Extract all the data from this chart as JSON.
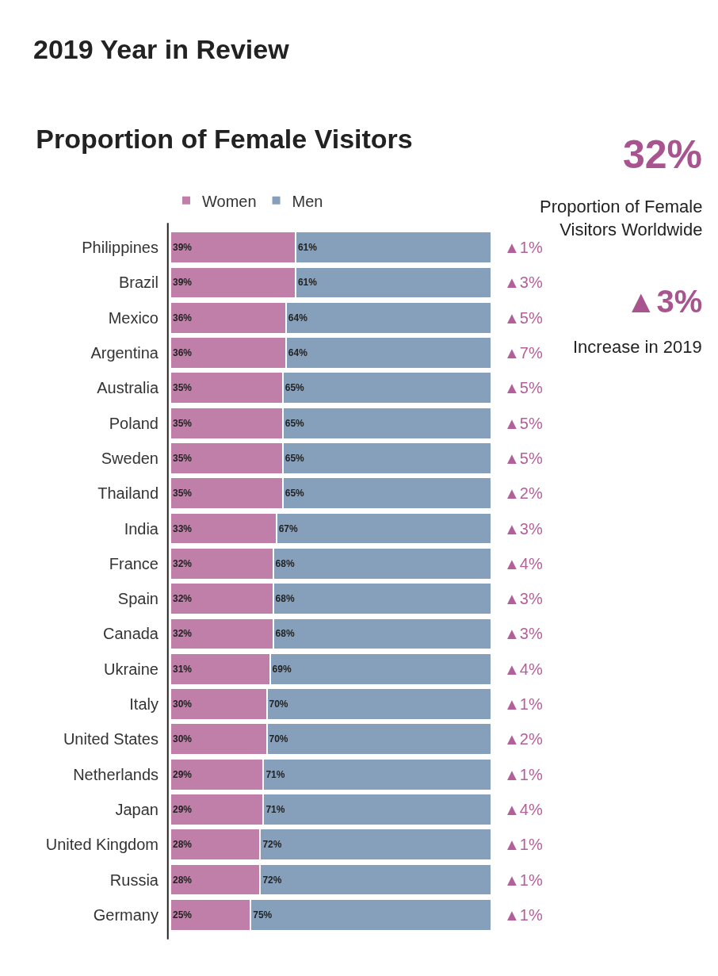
{
  "chart_data": {
    "type": "bar",
    "title": "Proportion of Female Visitors",
    "categories": [
      "Philippines",
      "Brazil",
      "Mexico",
      "Argentina",
      "Australia",
      "Poland",
      "Sweden",
      "Thailand",
      "India",
      "France",
      "Spain",
      "Canada",
      "Ukraine",
      "Italy",
      "United States",
      "Netherlands",
      "Japan",
      "United Kingdom",
      "Russia",
      "Germany"
    ],
    "series": [
      {
        "name": "Women",
        "color": "#c07fa8",
        "values": [
          39,
          39,
          36,
          36,
          35,
          35,
          35,
          35,
          33,
          32,
          32,
          32,
          31,
          30,
          30,
          29,
          29,
          28,
          28,
          25
        ],
        "value_labels": [
          "39%",
          "39%",
          "36%",
          "36%",
          "35%",
          "35%",
          "35%",
          "35%",
          "33%",
          "32%",
          "32%",
          "32%",
          "31%",
          "30%",
          "30%",
          "29%",
          "29%",
          "28%",
          "28%",
          "25%"
        ]
      },
      {
        "name": "Men",
        "color": "#86a0bb",
        "values": [
          61,
          61,
          64,
          64,
          65,
          65,
          65,
          65,
          67,
          68,
          68,
          68,
          69,
          70,
          70,
          71,
          71,
          72,
          72,
          75
        ],
        "value_labels": [
          "61%",
          "61%",
          "64%",
          "64%",
          "65%",
          "65%",
          "65%",
          "65%",
          "67%",
          "68%",
          "68%",
          "68%",
          "69%",
          "70%",
          "70%",
          "71%",
          "71%",
          "72%",
          "72%",
          "75%"
        ]
      }
    ],
    "stacked": true,
    "orientation": "horizontal",
    "xlim": [
      0,
      100
    ],
    "tick_labels": "y",
    "legend": "top",
    "annotations": [
      "2019 Year in Review",
      "32%",
      "Proportion of Female Visitors Worldwide",
      "▲3%",
      "Increase in 2019",
      "▲1%",
      "▲3%",
      "▲5%",
      "▲7%",
      "▲5%",
      "▲5%",
      "▲5%",
      "▲2%",
      "▲3%",
      "▲4%",
      "▲3%",
      "▲3%",
      "▲4%",
      "▲1%",
      "▲2%",
      "▲1%",
      "▲4%",
      "▲1%",
      "▲1%",
      "▲1%"
    ]
  }
}
